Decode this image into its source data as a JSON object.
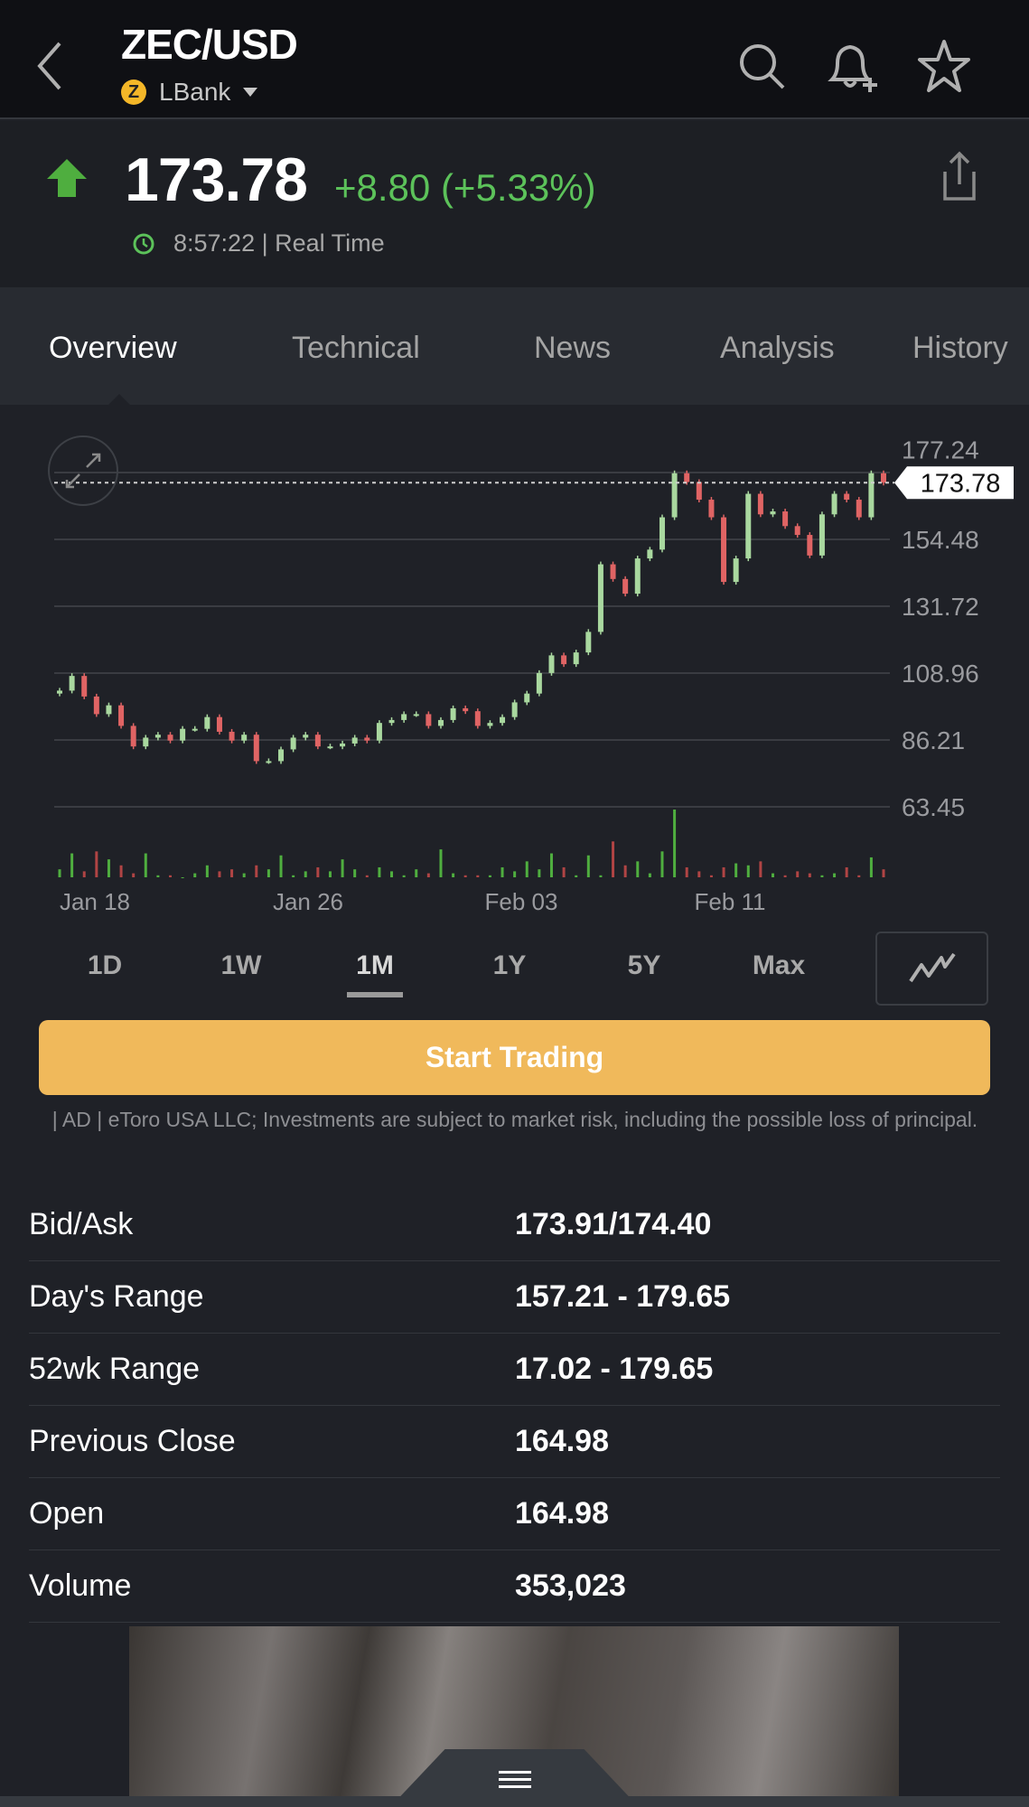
{
  "header": {
    "title": "ZEC/USD",
    "exchange": "LBank",
    "coin_glyph": "Z",
    "icons": [
      "back-chevron-icon",
      "search-icon",
      "bell-plus-icon",
      "star-icon"
    ]
  },
  "quote": {
    "price": "173.78",
    "change": "+8.80 (+5.33%)",
    "time": "8:57:22",
    "time_sep": "|",
    "mode": "Real Time",
    "up_color": "#4fae3f",
    "change_color": "#5cc25a"
  },
  "tabs": [
    "Overview",
    "Technical",
    "News",
    "Analysis",
    "History"
  ],
  "timeframes": [
    "1D",
    "1W",
    "1M",
    "1Y",
    "5Y",
    "Max"
  ],
  "active_timeframe": "1M",
  "cta": {
    "label": "Start Trading",
    "color": "#f0b95b"
  },
  "disclaimer": "| AD | eToro USA LLC; Investments are subject to market risk, including the possible loss of principal.",
  "stats": [
    {
      "label": "Bid/Ask",
      "value": "173.91/174.40"
    },
    {
      "label": "Day's Range",
      "value": "157.21 - 179.65"
    },
    {
      "label": "52wk Range",
      "value": "17.02 - 179.65"
    },
    {
      "label": "Previous Close",
      "value": "164.98"
    },
    {
      "label": "Open",
      "value": "164.98"
    },
    {
      "label": "Volume",
      "value": "353,023"
    }
  ],
  "chart_data": {
    "type": "candlestick",
    "y_ticks": [
      "177.24",
      "154.48",
      "131.72",
      "108.96",
      "86.21",
      "63.45"
    ],
    "ylim": [
      63.45,
      177.24
    ],
    "x_ticks": [
      "Jan 18",
      "Jan 26",
      "Feb 03",
      "Feb 11"
    ],
    "last_price_label": "173.78",
    "up_color": "#a9d89f",
    "down_color": "#e06464",
    "open_first": 102,
    "closes": [
      103,
      108,
      101,
      95,
      98,
      91,
      84,
      87,
      88,
      86,
      90,
      90,
      94,
      89,
      86,
      88,
      79,
      79,
      83,
      87,
      88,
      84,
      84,
      85,
      87,
      86,
      92,
      93,
      95,
      95,
      91,
      93,
      97,
      96,
      91,
      92,
      94,
      99,
      102,
      109,
      115,
      112,
      116,
      123,
      146,
      141,
      136,
      148,
      151,
      162,
      177,
      174,
      168,
      162,
      140,
      148,
      170,
      163,
      164,
      159,
      156,
      149,
      163,
      170,
      168,
      162,
      177,
      173.78
    ],
    "volume": [
      4,
      12,
      3,
      13,
      9,
      6,
      2,
      12,
      1,
      1,
      0,
      2,
      6,
      3,
      4,
      2,
      6,
      4,
      11,
      1,
      3,
      5,
      3,
      9,
      4,
      1,
      5,
      3,
      1,
      4,
      2,
      14,
      2,
      1,
      1,
      1,
      5,
      3,
      8,
      4,
      12,
      5,
      1,
      11,
      1,
      18,
      6,
      8,
      2,
      13,
      34,
      5,
      3,
      1,
      5,
      7,
      6,
      8,
      2,
      1,
      3,
      2,
      1,
      2,
      5,
      1,
      10,
      4
    ]
  }
}
